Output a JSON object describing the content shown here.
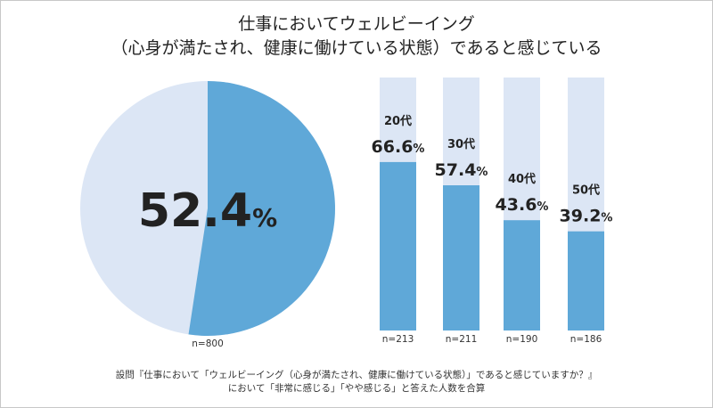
{
  "title_line1": "仕事においてウェルビーイング",
  "title_line2": "（心身が満たされ、健康に働けている状態）であると感じている",
  "colors": {
    "filled": "#5fa8d8",
    "empty": "#dce6f5",
    "text": "#222222"
  },
  "chart_data": [
    {
      "type": "pie",
      "title": "仕事においてウェルビーイング（心身が満たされ、健康に働けている状態）であると感じている",
      "value": 52.4,
      "value_label": "52.4",
      "unit": "%",
      "sample_label": "n=800"
    },
    {
      "type": "bar",
      "orientation": "vertical",
      "stacked_to_100": true,
      "ylim": [
        0,
        100
      ],
      "categories": [
        "20代",
        "30代",
        "40代",
        "50代"
      ],
      "values": [
        66.6,
        57.4,
        43.6,
        39.2
      ],
      "value_labels": [
        "66.6",
        "57.4",
        "43.6",
        "39.2"
      ],
      "unit": "%",
      "sample_labels": [
        "n=213",
        "n=211",
        "n=190",
        "n=186"
      ]
    }
  ],
  "note_line1": "設問『仕事において「ウェルビーイング（心身が満たされ、健康に働けている状態）」であると感じていますか？』",
  "note_line2": "において「非常に感じる」「やや感じる」と答えた人数を合算"
}
